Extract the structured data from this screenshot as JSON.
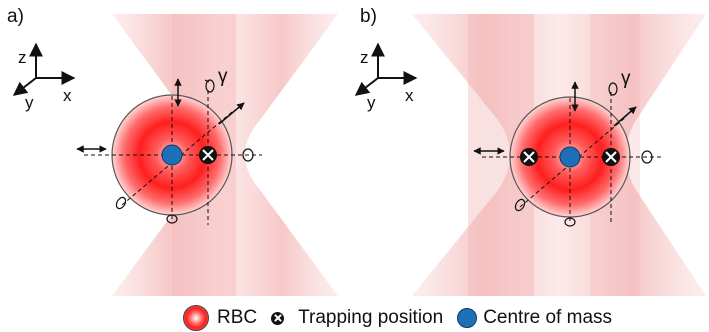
{
  "panels": [
    {
      "label": "a)",
      "rotation_label": "γ",
      "axes": {
        "z": "z",
        "x": "x",
        "y": "y"
      }
    },
    {
      "label": "b)",
      "rotation_label": "γ",
      "axes": {
        "z": "z",
        "x": "x",
        "y": "y"
      }
    }
  ],
  "legend": {
    "rbc": "RBC",
    "trapping": "Trapping position",
    "com": "Centre of mass"
  },
  "colors": {
    "beam": "#f7c9c9",
    "rbc_center": "#ff1a1a",
    "centre_of_mass": "#1d6fb8",
    "trap": "#111111"
  }
}
